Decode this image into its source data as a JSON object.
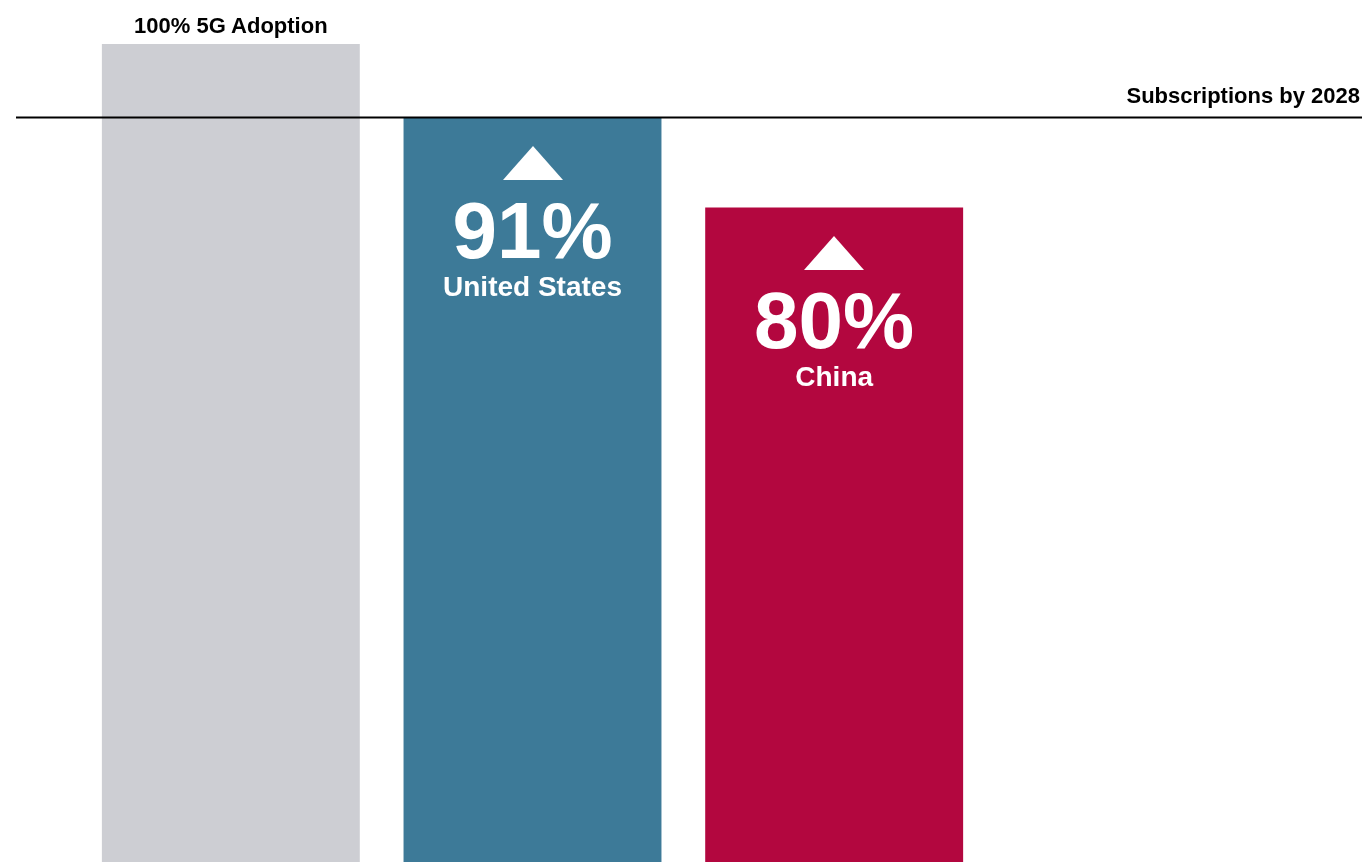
{
  "chart_data": {
    "type": "bar",
    "categories": [
      "5G Adoption",
      "United States",
      "China"
    ],
    "values": [
      100,
      91,
      80
    ],
    "colors": [
      "#cdced3",
      "#3d7a98",
      "#b3073f"
    ],
    "value_labels": [
      "100%",
      "91%",
      "80%"
    ],
    "ylim": [
      0,
      100
    ],
    "tick_labels": false,
    "ref_lines": [
      {
        "axis": "y",
        "value": 91,
        "label": "Subscriptions by 2028",
        "color": "#000000"
      }
    ]
  }
}
